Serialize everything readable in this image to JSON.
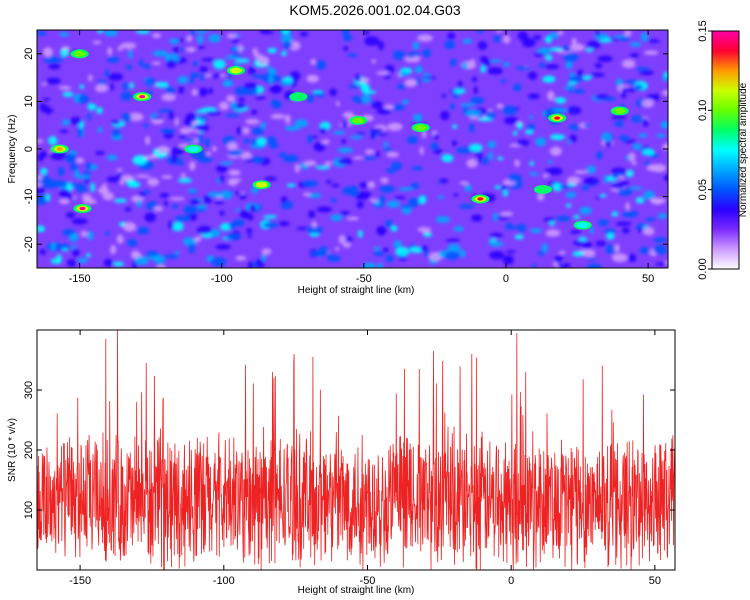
{
  "title": "KOM5.2026.001.02.04.G03",
  "colors": {
    "signal": "#ee2222",
    "colormap": [
      "#ffffff",
      "#cc99ff",
      "#7a2aff",
      "#2a00ff",
      "#0055ff",
      "#00aaff",
      "#00ffff",
      "#00ff66",
      "#66ff00",
      "#ccff00",
      "#ff9900",
      "#ff0033",
      "#ff00aa"
    ]
  },
  "chart_data": [
    {
      "type": "heatmap",
      "name": "spectrogram",
      "xlabel": "Height of straight line (km)",
      "ylabel": "Frequency (Hz)",
      "xlim": [
        -165,
        57
      ],
      "ylim": [
        -25,
        25
      ],
      "xticks": [
        -150,
        -100,
        -50,
        0,
        50
      ],
      "xtick_labels": [
        "-150",
        "-100",
        "-50",
        "0",
        "50"
      ],
      "yticks": [
        -20,
        -10,
        0,
        10,
        20
      ],
      "ytick_labels": [
        "-20",
        "-10",
        "0",
        "10",
        "20"
      ],
      "colorbar": {
        "label": "Normalized spectral amplitude",
        "range": [
          0.0,
          0.15
        ],
        "ticks": [
          0.0,
          0.05,
          0.1,
          0.15
        ],
        "tick_labels": [
          "0.00",
          "0.05",
          "0.10",
          "0.15"
        ]
      },
      "peaks": [
        {
          "x": -128,
          "y": 11,
          "value": 0.15
        },
        {
          "x": -149,
          "y": -12.5,
          "value": 0.15
        },
        {
          "x": -9,
          "y": -10.5,
          "value": 0.14
        },
        {
          "x": 18,
          "y": 6.5,
          "value": 0.14
        },
        {
          "x": -157,
          "y": 0,
          "value": 0.12
        },
        {
          "x": -95,
          "y": 16.5,
          "value": 0.11
        },
        {
          "x": -86,
          "y": -7.5,
          "value": 0.11
        },
        {
          "x": -30,
          "y": 4.5,
          "value": 0.1
        },
        {
          "x": -52,
          "y": 6,
          "value": 0.1
        },
        {
          "x": 40,
          "y": 8,
          "value": 0.1
        },
        {
          "x": -150,
          "y": 20,
          "value": 0.1
        },
        {
          "x": 13,
          "y": -8.5,
          "value": 0.09
        },
        {
          "x": -73,
          "y": 11,
          "value": 0.09
        },
        {
          "x": -110,
          "y": 0,
          "value": 0.08
        },
        {
          "x": 27,
          "y": -16,
          "value": 0.08
        }
      ]
    },
    {
      "type": "line",
      "name": "snr-trace",
      "xlabel": "Height of straight line (km)",
      "ylabel": "SNR (10 * v/v)",
      "xlim": [
        -165,
        57
      ],
      "ylim": [
        0,
        400
      ],
      "xticks": [
        -150,
        -100,
        -50,
        0,
        50
      ],
      "xtick_labels": [
        "-150",
        "-100",
        "-50",
        "0",
        "50"
      ],
      "yticks": [
        100,
        200,
        300
      ],
      "ytick_labels": [
        "100",
        "200",
        "300"
      ],
      "baseline_mean": 115,
      "max_value": 400,
      "min_value": 0,
      "notable_spikes": [
        {
          "x": -137,
          "y": 400
        },
        {
          "x": -141,
          "y": 385
        },
        {
          "x": 2,
          "y": 395
        },
        {
          "x": -27,
          "y": 365
        },
        {
          "x": -69,
          "y": 355
        },
        {
          "x": -127,
          "y": 345
        },
        {
          "x": -32,
          "y": 335
        },
        {
          "x": -83,
          "y": 330
        }
      ]
    }
  ]
}
